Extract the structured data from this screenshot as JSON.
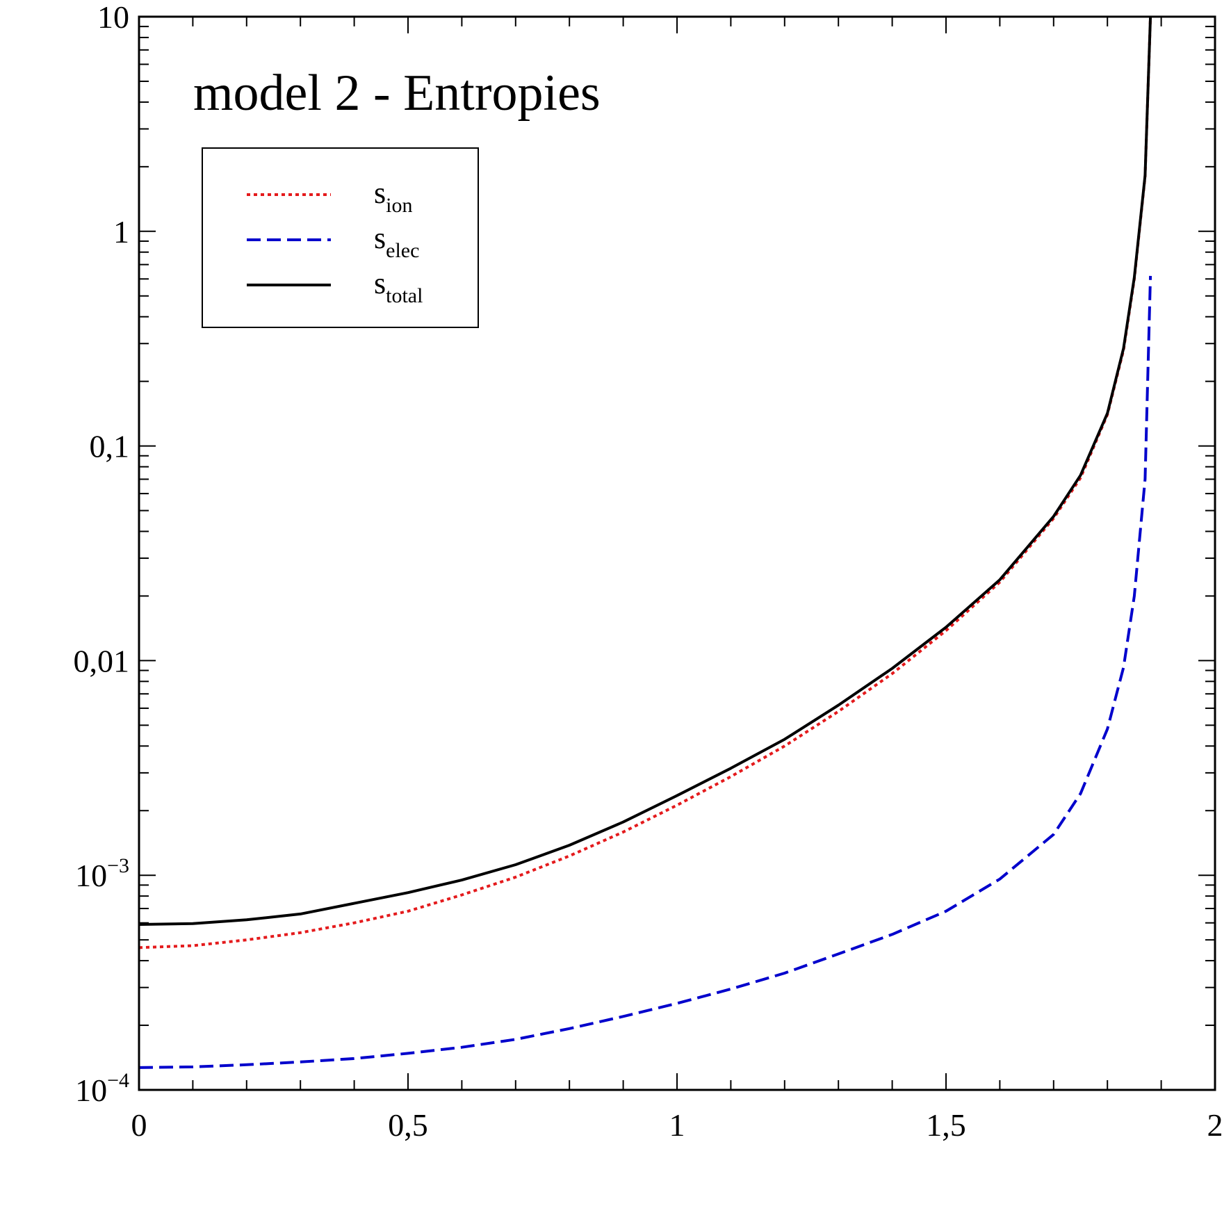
{
  "chart_data": {
    "type": "line",
    "title": "model 2 - Entropies",
    "xlabel": "",
    "ylabel": "",
    "xlim": [
      0,
      2
    ],
    "ylim": [
      0.0001,
      10
    ],
    "yscale": "log",
    "grid": false,
    "legend_position": "top-left",
    "x_ticks": [
      {
        "value": 0,
        "label": "0"
      },
      {
        "value": 0.5,
        "label": "0,5"
      },
      {
        "value": 1,
        "label": "1"
      },
      {
        "value": 1.5,
        "label": "1,5"
      },
      {
        "value": 2,
        "label": "2"
      }
    ],
    "y_ticks": [
      {
        "value": 10,
        "label": "10",
        "base": "",
        "exp": ""
      },
      {
        "value": 1,
        "label": "1",
        "base": "",
        "exp": ""
      },
      {
        "value": 0.1,
        "label": "0,1",
        "base": "",
        "exp": ""
      },
      {
        "value": 0.01,
        "label": "0,01",
        "base": "",
        "exp": ""
      },
      {
        "value": 0.001,
        "label": "",
        "base": "10",
        "exp": "−3"
      },
      {
        "value": 0.0001,
        "label": "",
        "base": "10",
        "exp": "−4"
      }
    ],
    "series": [
      {
        "name": "s",
        "subscript": "ion",
        "color": "#e41a1c",
        "style": "dotted",
        "x": [
          0,
          0.1,
          0.2,
          0.3,
          0.4,
          0.5,
          0.6,
          0.7,
          0.8,
          0.9,
          1.0,
          1.1,
          1.2,
          1.3,
          1.4,
          1.5,
          1.6,
          1.7,
          1.75,
          1.8,
          1.83,
          1.85,
          1.87,
          1.88
        ],
        "y": [
          0.00046,
          0.00047,
          0.0005,
          0.00054,
          0.0006,
          0.00068,
          0.00081,
          0.00098,
          0.00123,
          0.00159,
          0.00212,
          0.00288,
          0.004,
          0.0058,
          0.0087,
          0.0138,
          0.0232,
          0.046,
          0.071,
          0.14,
          0.28,
          0.6,
          1.8,
          10
        ]
      },
      {
        "name": "s",
        "subscript": "elec",
        "color": "#0000cc",
        "style": "dashed",
        "x": [
          0,
          0.1,
          0.2,
          0.3,
          0.4,
          0.5,
          0.6,
          0.7,
          0.8,
          0.9,
          1.0,
          1.1,
          1.2,
          1.3,
          1.4,
          1.5,
          1.6,
          1.7,
          1.75,
          1.8,
          1.83,
          1.85,
          1.87,
          1.88
        ],
        "y": [
          0.000127,
          0.000128,
          0.000131,
          0.000135,
          0.00014,
          0.000148,
          0.000158,
          0.000172,
          0.000193,
          0.00022,
          0.000253,
          0.000295,
          0.00035,
          0.00043,
          0.00053,
          0.00068,
          0.00096,
          0.00155,
          0.0024,
          0.0048,
          0.0093,
          0.02,
          0.07,
          0.62
        ]
      },
      {
        "name": "s",
        "subscript": "total",
        "color": "#000000",
        "style": "solid",
        "x": [
          0,
          0.1,
          0.2,
          0.3,
          0.4,
          0.5,
          0.6,
          0.7,
          0.8,
          0.9,
          1.0,
          1.1,
          1.2,
          1.3,
          1.4,
          1.5,
          1.6,
          1.7,
          1.75,
          1.8,
          1.83,
          1.85,
          1.87,
          1.88
        ],
        "y": [
          0.00059,
          0.000595,
          0.00062,
          0.00066,
          0.00074,
          0.00083,
          0.00095,
          0.00112,
          0.00138,
          0.00177,
          0.00235,
          0.00315,
          0.0043,
          0.0062,
          0.0092,
          0.0143,
          0.0238,
          0.047,
          0.073,
          0.142,
          0.285,
          0.61,
          1.82,
          10
        ]
      }
    ]
  }
}
